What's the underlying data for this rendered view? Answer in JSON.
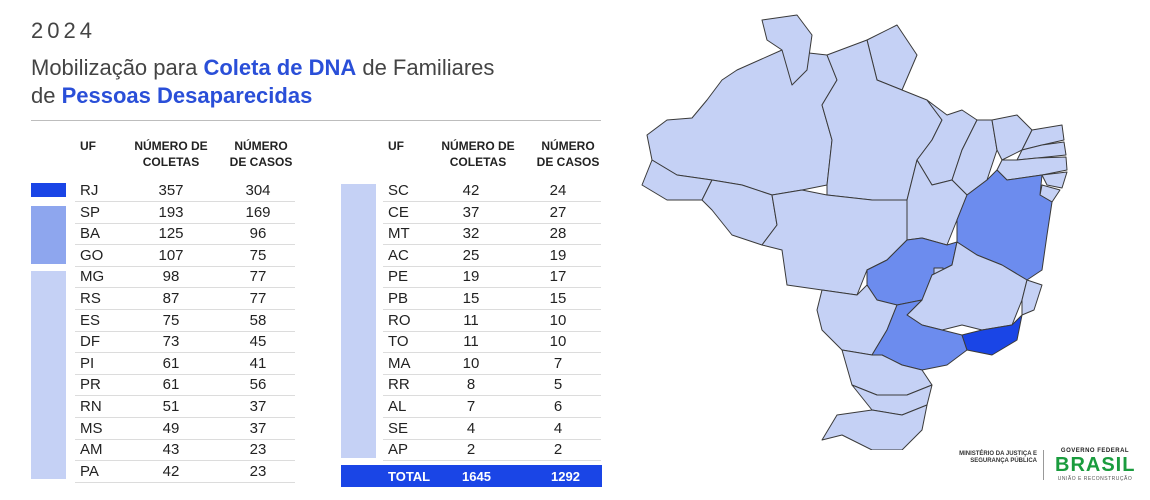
{
  "header": {
    "year": "2024",
    "title_pre": "Mobilização para ",
    "title_bold1": "Coleta de DNA",
    "title_mid": " de Familiares",
    "title_line2_pre": "de ",
    "title_bold2": "Pessoas Desaparecidas"
  },
  "columns": {
    "uf": "UF",
    "coletas": "NÚMERO DE COLETAS",
    "casos": "NÚMERO DE CASOS"
  },
  "table_left": [
    {
      "uf": "RJ",
      "coletas": "357",
      "casos": "304"
    },
    {
      "uf": "SP",
      "coletas": "193",
      "casos": "169"
    },
    {
      "uf": "BA",
      "coletas": "125",
      "casos": "96"
    },
    {
      "uf": "GO",
      "coletas": "107",
      "casos": "75"
    },
    {
      "uf": "MG",
      "coletas": "98",
      "casos": "77"
    },
    {
      "uf": "RS",
      "coletas": "87",
      "casos": "77"
    },
    {
      "uf": "ES",
      "coletas": "75",
      "casos": "58"
    },
    {
      "uf": "DF",
      "coletas": "73",
      "casos": "45"
    },
    {
      "uf": "PI",
      "coletas": "61",
      "casos": "41"
    },
    {
      "uf": "PR",
      "coletas": "61",
      "casos": "56"
    },
    {
      "uf": "RN",
      "coletas": "51",
      "casos": "37"
    },
    {
      "uf": "MS",
      "coletas": "49",
      "casos": "37"
    },
    {
      "uf": "AM",
      "coletas": "43",
      "casos": "23"
    },
    {
      "uf": "PA",
      "coletas": "42",
      "casos": "23"
    }
  ],
  "table_right": [
    {
      "uf": "SC",
      "coletas": "42",
      "casos": "24"
    },
    {
      "uf": "CE",
      "coletas": "37",
      "casos": "27"
    },
    {
      "uf": "MT",
      "coletas": "32",
      "casos": "28"
    },
    {
      "uf": "AC",
      "coletas": "25",
      "casos": "19"
    },
    {
      "uf": "PE",
      "coletas": "19",
      "casos": "17"
    },
    {
      "uf": "PB",
      "coletas": "15",
      "casos": "15"
    },
    {
      "uf": "RO",
      "coletas": "11",
      "casos": "10"
    },
    {
      "uf": "TO",
      "coletas": "11",
      "casos": "10"
    },
    {
      "uf": "MA",
      "coletas": "10",
      "casos": "7"
    },
    {
      "uf": "RR",
      "coletas": "8",
      "casos": "5"
    },
    {
      "uf": "AL",
      "coletas": "7",
      "casos": "6"
    },
    {
      "uf": "SE",
      "coletas": "4",
      "casos": "4"
    },
    {
      "uf": "AP",
      "coletas": "2",
      "casos": "2"
    }
  ],
  "total": {
    "label": "TOTAL",
    "coletas": "1645",
    "casos": "1292"
  },
  "colors": {
    "tier1": "#1a45e6",
    "tier2": "#8ea6ee",
    "tier3": "#c5d1f5",
    "accent_text": "#2a4fd8"
  },
  "footer": {
    "ministry": "MINISTÉRIO DA JUSTIÇA E SEGURANÇA PÚBLICA",
    "gov_label": "GOVERNO FEDERAL",
    "brand": "BRASIL",
    "tagline": "UNIÃO E RECONSTRUÇÃO"
  }
}
